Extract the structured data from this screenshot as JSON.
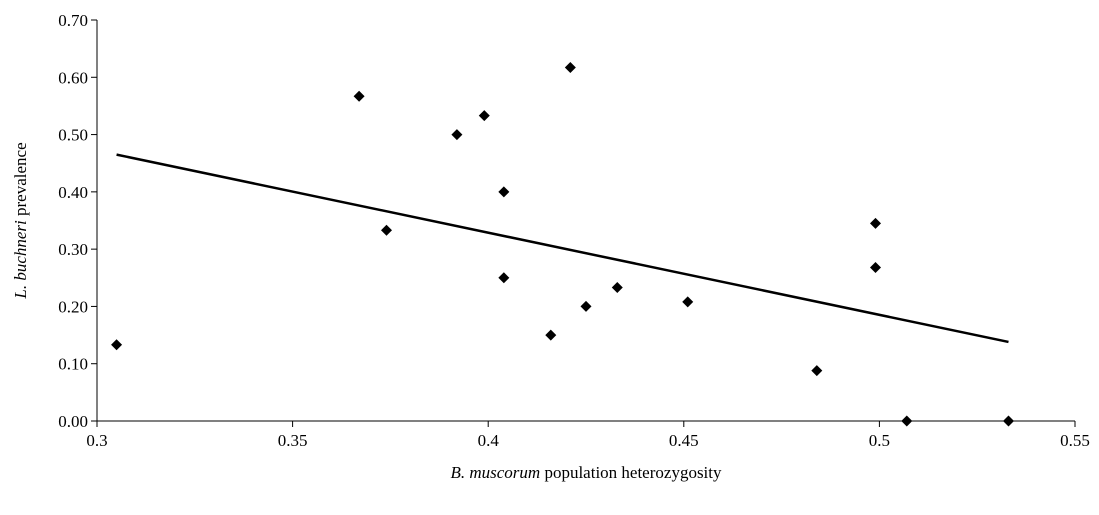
{
  "chart_data": {
    "type": "scatter",
    "title": "",
    "xlabel": {
      "italic": "B. muscorum",
      "rest": " population heterozygosity"
    },
    "ylabel": {
      "italic": "L. buchneri",
      "rest": " prevalence"
    },
    "xlim": [
      0.3,
      0.55
    ],
    "ylim": [
      0,
      0.7
    ],
    "x_ticks": [
      "0.3",
      "0.35",
      "0.4",
      "0.45",
      "0.5",
      "0.55"
    ],
    "y_ticks": [
      "0.00",
      "0.10",
      "0.20",
      "0.30",
      "0.40",
      "0.50",
      "0.60",
      "0.70"
    ],
    "grid": false,
    "legend": "none",
    "marker": "diamond",
    "series": [
      {
        "points": [
          {
            "x": 0.305,
            "y": 0.133
          },
          {
            "x": 0.367,
            "y": 0.567
          },
          {
            "x": 0.374,
            "y": 0.333
          },
          {
            "x": 0.392,
            "y": 0.5
          },
          {
            "x": 0.399,
            "y": 0.533
          },
          {
            "x": 0.404,
            "y": 0.4
          },
          {
            "x": 0.404,
            "y": 0.25
          },
          {
            "x": 0.416,
            "y": 0.15
          },
          {
            "x": 0.421,
            "y": 0.617
          },
          {
            "x": 0.425,
            "y": 0.2
          },
          {
            "x": 0.433,
            "y": 0.233
          },
          {
            "x": 0.451,
            "y": 0.208
          },
          {
            "x": 0.484,
            "y": 0.088
          },
          {
            "x": 0.499,
            "y": 0.345
          },
          {
            "x": 0.499,
            "y": 0.268
          },
          {
            "x": 0.507,
            "y": 0.0
          },
          {
            "x": 0.533,
            "y": 0.0
          }
        ]
      }
    ],
    "trendline": {
      "x": [
        0.305,
        0.533
      ],
      "y": [
        0.465,
        0.138
      ]
    }
  }
}
